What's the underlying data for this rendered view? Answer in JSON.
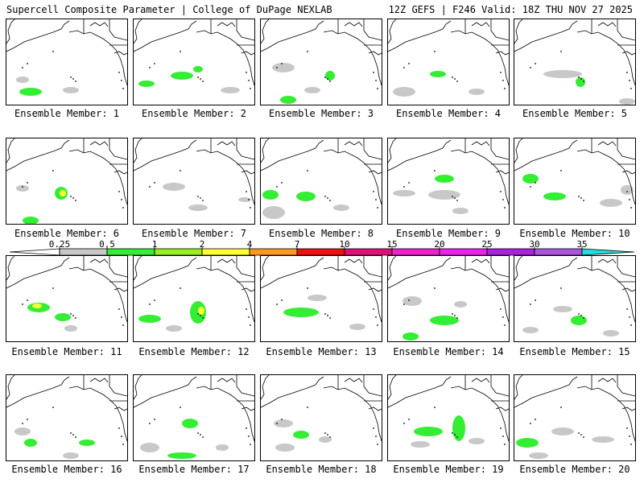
{
  "header": {
    "title_left": "Supercell Composite Parameter | College of DuPage NEXLAB",
    "title_right": "12Z GEFS | F246 Valid: 18Z THU NOV 27 2025"
  },
  "panels": [
    {
      "label": "Ensemble Member: 1"
    },
    {
      "label": "Ensemble Member: 2"
    },
    {
      "label": "Ensemble Member: 3"
    },
    {
      "label": "Ensemble Member: 4"
    },
    {
      "label": "Ensemble Member: 5"
    },
    {
      "label": "Ensemble Member: 6"
    },
    {
      "label": "Ensemble Member: 7"
    },
    {
      "label": "Ensemble Member: 8"
    },
    {
      "label": "Ensemble Member: 9"
    },
    {
      "label": "Ensemble Member: 10"
    },
    {
      "label": "Ensemble Member: 11"
    },
    {
      "label": "Ensemble Member: 12"
    },
    {
      "label": "Ensemble Member: 13"
    },
    {
      "label": "Ensemble Member: 14"
    },
    {
      "label": "Ensemble Member: 15"
    },
    {
      "label": "Ensemble Member: 16"
    },
    {
      "label": "Ensemble Member: 17"
    },
    {
      "label": "Ensemble Member: 18"
    },
    {
      "label": "Ensemble Member: 19"
    },
    {
      "label": "Ensemble Member: 20"
    }
  ],
  "colorbar": {
    "ticks": [
      "0.25",
      "0.5",
      "1",
      "2",
      "4",
      "7",
      "10",
      "15",
      "20",
      "25",
      "30",
      "35"
    ],
    "colors": [
      "#c8c8c8",
      "#33ee33",
      "#99ee22",
      "#ffff33",
      "#ff9922",
      "#ee1111",
      "#dd1177",
      "#ee22cc",
      "#ee22ee",
      "#aa22dd",
      "#aa55dd",
      "#22dddd"
    ]
  }
}
